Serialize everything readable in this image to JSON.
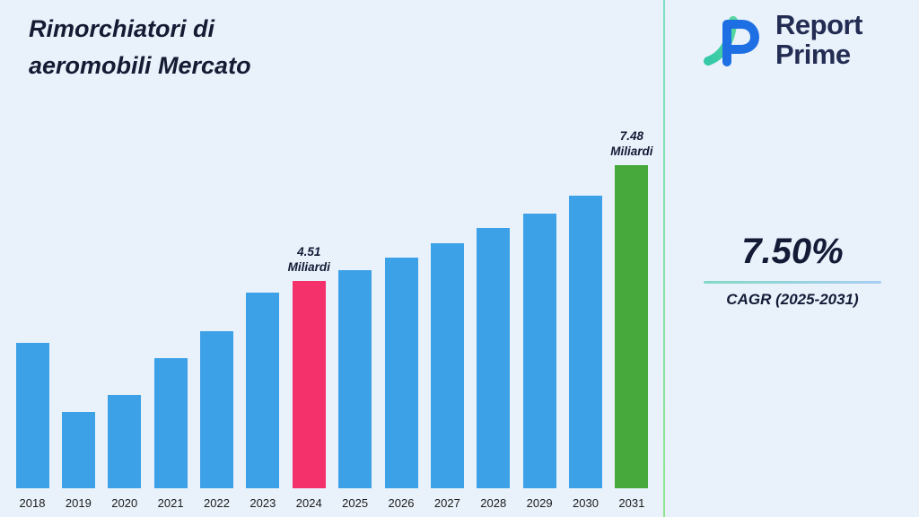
{
  "page": {
    "background": "#E9F2FB"
  },
  "header": {
    "title_line1": "Rimorchiatori di",
    "title_line2": "aeromobili Mercato"
  },
  "logo": {
    "line1": "Report",
    "line2": "Prime",
    "mark_teal": "#38CBA8",
    "mark_blue": "#1E6FE3"
  },
  "kpi": {
    "value": "7.50%",
    "label": "CAGR (2025-2031)"
  },
  "chart_data": {
    "type": "bar",
    "title": "Rimorchiatori di aeromobili Mercato",
    "unit": "Miliardi",
    "categories": [
      "2018",
      "2019",
      "2020",
      "2021",
      "2022",
      "2023",
      "2024",
      "2025",
      "2026",
      "2027",
      "2028",
      "2029",
      "2030",
      "2031"
    ],
    "values": [
      2.92,
      1.15,
      1.59,
      2.53,
      3.22,
      4.21,
      4.51,
      4.79,
      5.11,
      5.48,
      5.87,
      6.24,
      6.7,
      7.48
    ],
    "ylim": [
      0,
      8
    ],
    "grid": false,
    "legend": "none",
    "bar_color_default": "#3DA1E8",
    "highlights": [
      {
        "index": 6,
        "color": "#F4316B"
      },
      {
        "index": 13,
        "color": "#47A83C"
      }
    ],
    "annotations": [
      {
        "category": "2024",
        "lines": [
          "4.51",
          "Miliardi"
        ]
      },
      {
        "category": "2031",
        "lines": [
          "7.48",
          "Miliardi"
        ]
      }
    ]
  }
}
